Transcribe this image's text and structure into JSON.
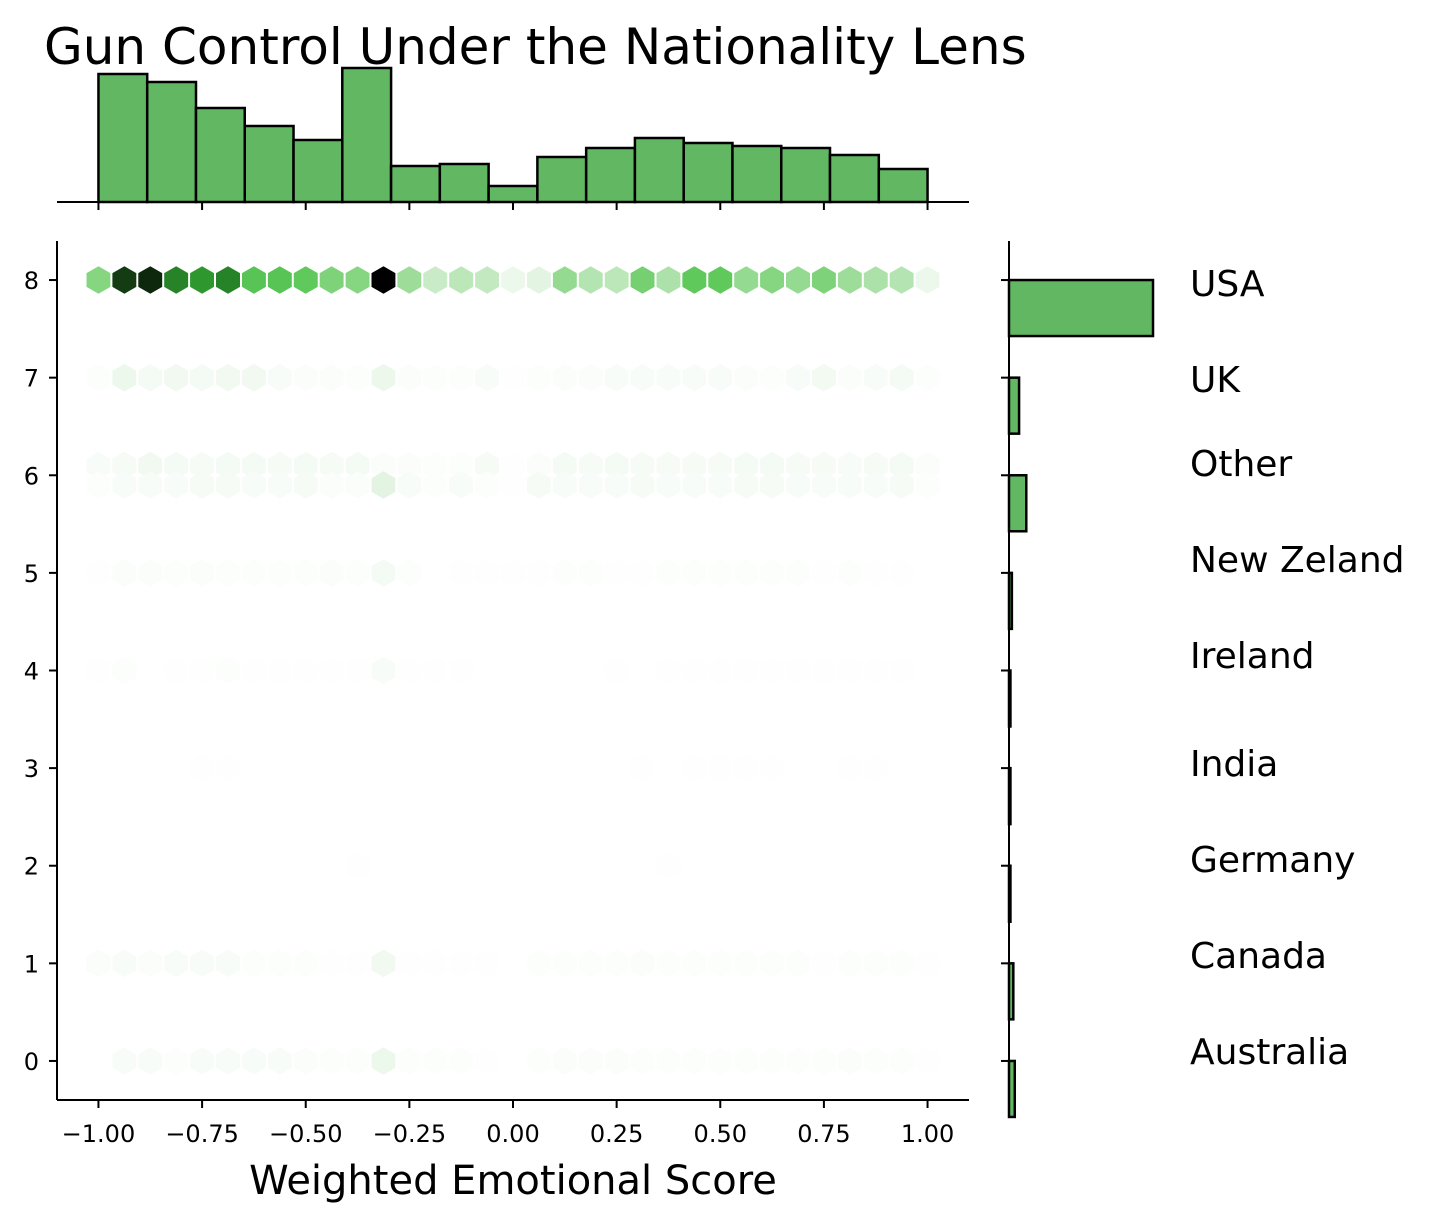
{
  "chart_data": {
    "type": "heatmap",
    "title": "Gun Control Under the Nationality Lens",
    "xlabel": "Weighted Emotional Score",
    "ylabel": "",
    "xlim": [
      -1.1,
      1.1
    ],
    "ylim": [
      -0.4,
      8.4
    ],
    "x_ticks": [
      -1.0,
      -0.75,
      -0.5,
      -0.25,
      0.0,
      0.25,
      0.5,
      0.75,
      1.0
    ],
    "x_tick_labels": [
      "−1.00",
      "−0.75",
      "−0.50",
      "−0.25",
      "0.00",
      "0.25",
      "0.50",
      "0.75",
      "1.00"
    ],
    "y_ticks": [
      0,
      1,
      2,
      3,
      4,
      5,
      6,
      7,
      8
    ],
    "y_tick_labels": [
      "0",
      "1",
      "2",
      "3",
      "4",
      "5",
      "6",
      "7",
      "8"
    ],
    "colors": {
      "bar_fill": "#62b862",
      "bar_edge": "#000000",
      "hex_palette": [
        "#ffffff",
        "#e9f6e8",
        "#c0e8bd",
        "#8fd88b",
        "#5fc95b",
        "#34a834",
        "#1d6b1f",
        "#143f14",
        "#000000"
      ]
    },
    "hexbin": {
      "gridsize": 35,
      "x_bin_centers": [
        -1.0,
        -0.9375,
        -0.875,
        -0.8125,
        -0.75,
        -0.6875,
        -0.625,
        -0.5625,
        -0.5,
        -0.4375,
        -0.375,
        -0.3125,
        -0.25,
        -0.1875,
        -0.125,
        -0.0625,
        0.0,
        0.0625,
        0.125,
        0.1875,
        0.25,
        0.3125,
        0.375,
        0.4375,
        0.5,
        0.5625,
        0.625,
        0.6875,
        0.75,
        0.8125,
        0.875,
        0.9375,
        1.0
      ],
      "rows": [
        {
          "y": 8,
          "intensity": [
            0.4,
            0.88,
            0.92,
            0.7,
            0.66,
            0.7,
            0.52,
            0.52,
            0.5,
            0.42,
            0.4,
            1.0,
            0.34,
            0.22,
            0.26,
            0.24,
            0.1,
            0.14,
            0.36,
            0.28,
            0.26,
            0.44,
            0.3,
            0.5,
            0.5,
            0.36,
            0.4,
            0.36,
            0.42,
            0.34,
            0.3,
            0.28,
            0.1
          ]
        },
        {
          "y": 7,
          "intensity": [
            0.02,
            0.1,
            0.06,
            0.08,
            0.06,
            0.08,
            0.08,
            0.04,
            0.03,
            0.03,
            0.02,
            0.1,
            0.03,
            0.02,
            0.02,
            0.04,
            0.01,
            0.02,
            0.03,
            0.03,
            0.04,
            0.04,
            0.04,
            0.04,
            0.04,
            0.03,
            0.02,
            0.04,
            0.07,
            0.03,
            0.04,
            0.06,
            0.02
          ]
        },
        {
          "y": 6.1,
          "intensity": [
            0.04,
            0.05,
            0.08,
            0.06,
            0.05,
            0.06,
            0.06,
            0.05,
            0.06,
            0.05,
            0.06,
            0.03,
            0.03,
            0.02,
            0.02,
            0.05,
            0.01,
            0.03,
            0.06,
            0.05,
            0.06,
            0.05,
            0.05,
            0.05,
            0.05,
            0.06,
            0.06,
            0.05,
            0.05,
            0.04,
            0.05,
            0.06,
            0.03
          ]
        },
        {
          "y": 5.9,
          "intensity": [
            0.02,
            0.04,
            0.04,
            0.04,
            0.05,
            0.05,
            0.04,
            0.04,
            0.05,
            0.03,
            0.03,
            0.14,
            0.04,
            0.02,
            0.04,
            0.02,
            0.01,
            0.05,
            0.04,
            0.04,
            0.04,
            0.05,
            0.04,
            0.04,
            0.04,
            0.05,
            0.05,
            0.04,
            0.04,
            0.04,
            0.04,
            0.05,
            0.02
          ]
        },
        {
          "y": 5,
          "intensity": [
            0.01,
            0.03,
            0.03,
            0.02,
            0.03,
            0.02,
            0.02,
            0.02,
            0.02,
            0.03,
            0.02,
            0.06,
            0.02,
            0.0,
            0.01,
            0.01,
            0.01,
            0.01,
            0.02,
            0.02,
            0.01,
            0.01,
            0.02,
            0.02,
            0.02,
            0.02,
            0.02,
            0.02,
            0.01,
            0.02,
            0.01,
            0.01,
            0.0
          ]
        },
        {
          "y": 4,
          "intensity": [
            0.01,
            0.02,
            0.0,
            0.01,
            0.01,
            0.02,
            0.01,
            0.01,
            0.01,
            0.01,
            0.01,
            0.04,
            0.01,
            0.01,
            0.01,
            0.0,
            0.0,
            0.0,
            0.0,
            0.0,
            0.01,
            0.0,
            0.01,
            0.01,
            0.01,
            0.01,
            0.01,
            0.01,
            0.01,
            0.01,
            0.01,
            0.01,
            0.0
          ]
        },
        {
          "y": 3,
          "intensity": [
            0.0,
            0.0,
            0.0,
            0.0,
            0.01,
            0.01,
            0.0,
            0.0,
            0.0,
            0.0,
            0.0,
            0.0,
            0.0,
            0.0,
            0.0,
            0.0,
            0.0,
            0.0,
            0.0,
            0.0,
            0.0,
            0.01,
            0.0,
            0.01,
            0.01,
            0.01,
            0.01,
            0.0,
            0.0,
            0.01,
            0.01,
            0.0,
            0.0
          ]
        },
        {
          "y": 2,
          "intensity": [
            0.0,
            0.0,
            0.0,
            0.0,
            0.0,
            0.0,
            0.0,
            0.0,
            0.0,
            0.0,
            0.01,
            0.0,
            0.0,
            0.0,
            0.0,
            0.0,
            0.0,
            0.0,
            0.0,
            0.0,
            0.0,
            0.0,
            0.01,
            0.0,
            0.0,
            0.0,
            0.0,
            0.0,
            0.0,
            0.0,
            0.0,
            0.0,
            0.0
          ]
        },
        {
          "y": 1,
          "intensity": [
            0.03,
            0.04,
            0.03,
            0.04,
            0.04,
            0.04,
            0.02,
            0.02,
            0.02,
            0.01,
            0.01,
            0.08,
            0.01,
            0.01,
            0.01,
            0.01,
            0.0,
            0.02,
            0.02,
            0.02,
            0.02,
            0.03,
            0.02,
            0.02,
            0.02,
            0.02,
            0.02,
            0.02,
            0.01,
            0.02,
            0.02,
            0.02,
            0.01
          ]
        },
        {
          "y": 0,
          "intensity": [
            0.0,
            0.04,
            0.04,
            0.02,
            0.04,
            0.04,
            0.04,
            0.04,
            0.03,
            0.02,
            0.02,
            0.1,
            0.02,
            0.02,
            0.02,
            0.01,
            0.0,
            0.02,
            0.03,
            0.03,
            0.03,
            0.02,
            0.02,
            0.02,
            0.02,
            0.02,
            0.02,
            0.02,
            0.02,
            0.03,
            0.02,
            0.02,
            0.01
          ]
        }
      ]
    },
    "x_marginal": {
      "bin_edges": [
        -1.0,
        -0.8824,
        -0.7647,
        -0.6471,
        -0.5294,
        -0.4118,
        -0.2941,
        -0.1765,
        -0.0588,
        0.0588,
        0.1765,
        0.2941,
        0.4118,
        0.5294,
        0.6471,
        0.7647,
        0.8824,
        1.0
      ],
      "values": [
        128,
        120,
        94,
        76,
        62,
        134,
        36,
        38,
        16,
        45,
        54,
        64,
        59,
        56,
        54,
        47,
        33
      ]
    },
    "y_marginal": {
      "categories": [
        "Australia",
        "Canada",
        "Germany",
        "India",
        "Ireland",
        "New Zeland",
        "Other",
        "UK",
        "USA"
      ],
      "category_codes": [
        0,
        1,
        2,
        3,
        4,
        5,
        6,
        7,
        8
      ],
      "values": [
        4,
        3,
        1,
        1,
        1,
        2,
        12,
        7,
        100
      ]
    }
  }
}
